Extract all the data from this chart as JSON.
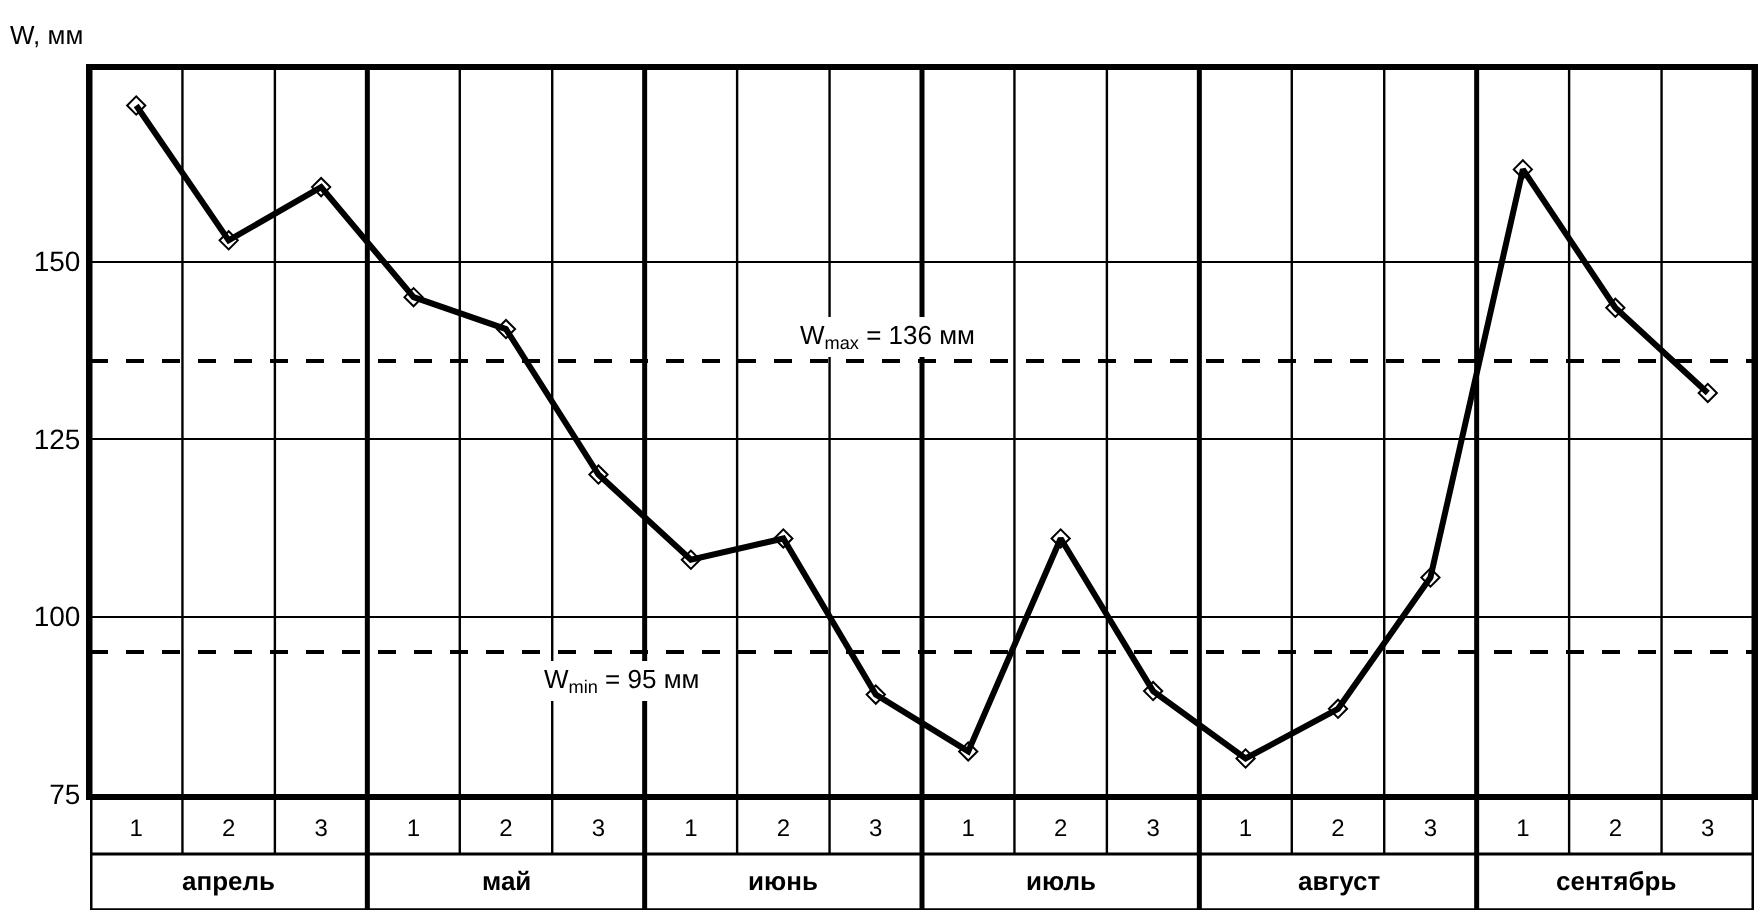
{
  "chart_data": {
    "type": "line",
    "ylabel": "W, мм",
    "categories": [
      "1",
      "2",
      "3",
      "1",
      "2",
      "3",
      "1",
      "2",
      "3",
      "1",
      "2",
      "3",
      "1",
      "2",
      "3",
      "1",
      "2",
      "3"
    ],
    "series": [
      {
        "color": "#000000",
        "values": [
          172,
          153,
          160.5,
          145,
          140.5,
          120,
          108,
          111,
          89,
          81,
          111,
          89.5,
          80,
          87,
          105.5,
          163,
          143.5,
          131.5
        ]
      }
    ],
    "ylim": [
      75,
      177
    ],
    "yticks": [
      75,
      100,
      125,
      150
    ],
    "grid": true,
    "marker": "diamond",
    "line_style": "solid",
    "ref_lines": [
      {
        "axis": "y",
        "value": 136,
        "label": "W$_{max}$ = 136 мм",
        "line_style": "dashed",
        "color": "#000000"
      },
      {
        "axis": "y",
        "value": 95,
        "label": "W$_{min}$ = 95 мм",
        "line_style": "dashed",
        "color": "#000000"
      }
    ],
    "annotations": [
      "апрель",
      "май",
      "июнь",
      "июль",
      "август",
      "сентябрь"
    ]
  }
}
